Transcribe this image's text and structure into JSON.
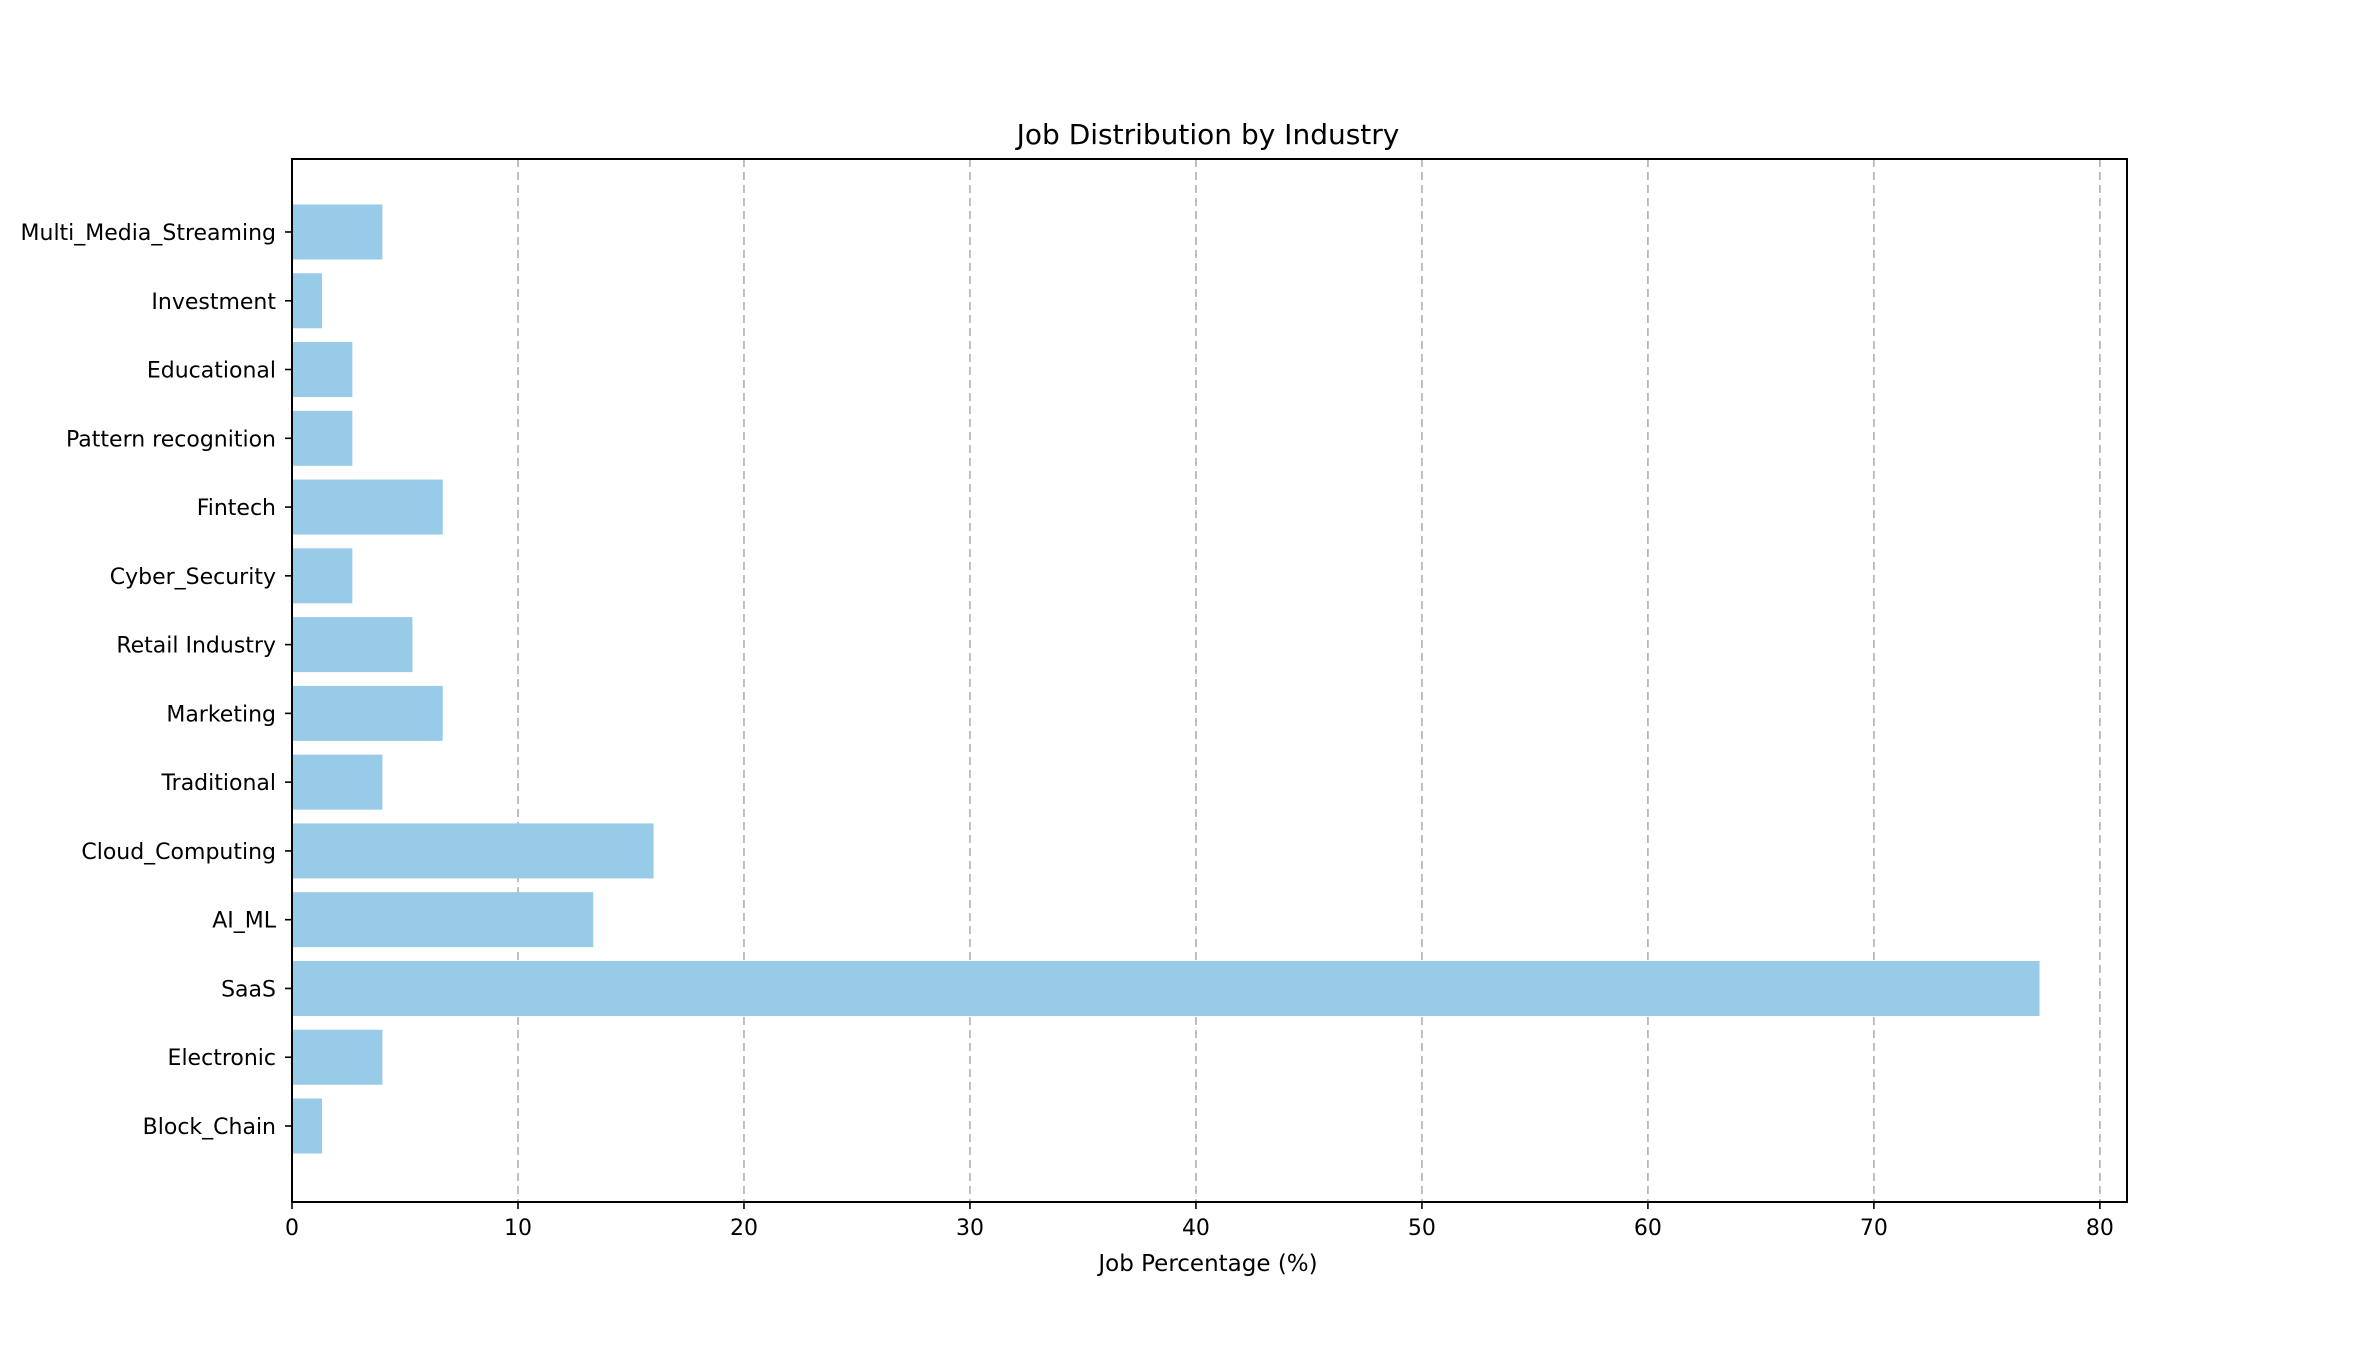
{
  "chart_data": {
    "type": "bar",
    "orientation": "horizontal",
    "title": "Job Distribution by Industry",
    "xlabel": "Job Percentage (%)",
    "ylabel": "",
    "categories": [
      "Block_Chain",
      "Electronic",
      "SaaS",
      "AI_ML",
      "Cloud_Computing",
      "Traditional",
      "Marketing",
      "Retail Industry",
      "Cyber_Security",
      "Fintech",
      "Pattern recognition",
      "Educational",
      "Investment",
      "Multi_Media_Streaming"
    ],
    "values": [
      1.33,
      4.0,
      77.33,
      13.33,
      16.0,
      4.0,
      6.67,
      5.33,
      2.67,
      6.67,
      2.67,
      2.67,
      1.33,
      4.0
    ],
    "xlim": [
      0,
      81.2
    ],
    "xticks": [
      0,
      10,
      20,
      30,
      40,
      50,
      60,
      70,
      80
    ],
    "grid": "x-axis dashed",
    "bar_color": "#97cbe7"
  }
}
